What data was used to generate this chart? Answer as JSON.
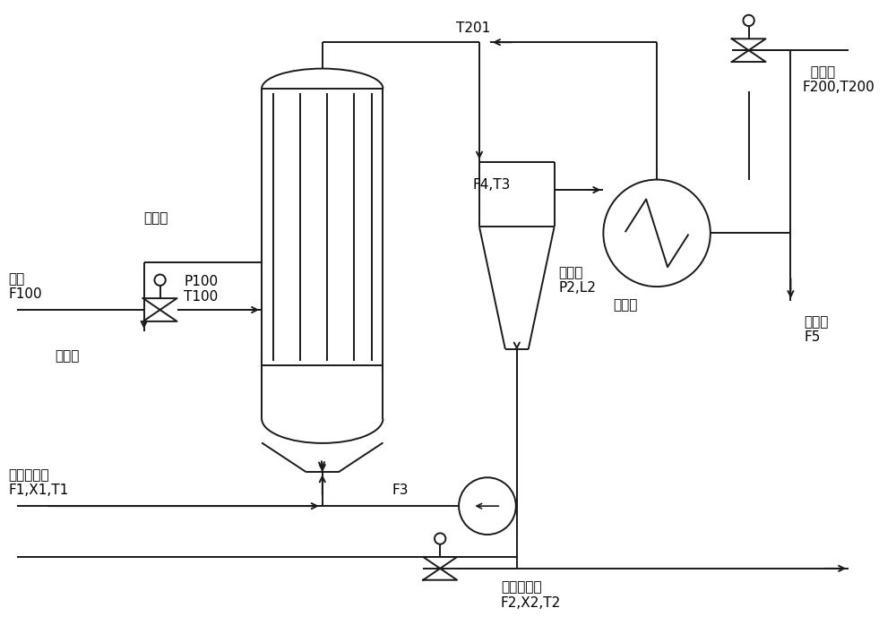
{
  "bg_color": "#ffffff",
  "line_color": "#1a1a1a",
  "lw": 1.4,
  "labels": {
    "steam": "蔭汽\nF100",
    "p100_t100": "P100\nT100",
    "evaporator": "蔭发器",
    "condensate_left": "冷凝液",
    "dilute_feed": "稀碱液进料\nF1,X1,T1",
    "f3": "F3",
    "separator": "分离器\nP2,L2",
    "f4_t3": "F4,T3",
    "condenser": "冷凝器",
    "t201": "T201",
    "cooling_water": "  冷却水\nF200,T200",
    "condensate_right": "冷凝液\nF5",
    "concentrated": "浓碱液产物\nF2,X2,T2"
  }
}
